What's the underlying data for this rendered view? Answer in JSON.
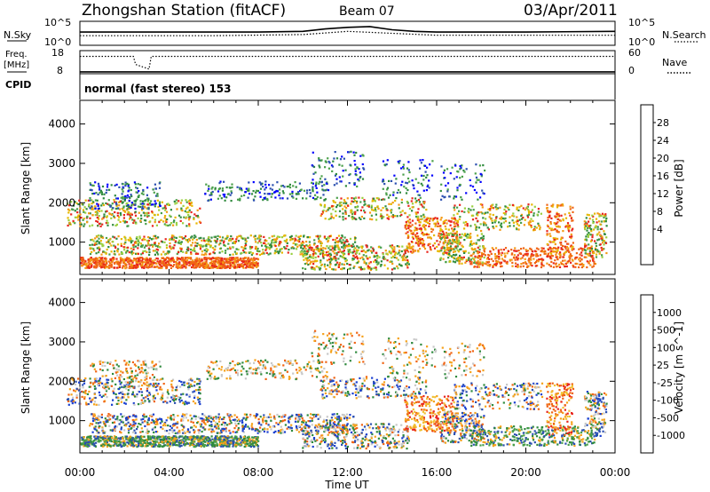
{
  "header": {
    "station": "Zhongshan Station (fitACF)",
    "beam": "Beam 07",
    "date": "03/Apr/2011"
  },
  "noise_panel": {
    "left_label": "N.Sky",
    "right_label": "N.Search",
    "left_ticks": [
      "10^5",
      "10^0"
    ],
    "right_ticks": [
      "10^5",
      "10^0"
    ]
  },
  "freq_panel": {
    "left_label_1": "Freq.",
    "left_label_2": "[MHz]",
    "right_label": "Nave",
    "left_ticks": [
      "18",
      "8"
    ],
    "right_ticks": [
      "60",
      "0"
    ]
  },
  "cpid_panel": {
    "label": "CPID",
    "mode": "normal (fast stereo) 153"
  },
  "chart_data": [
    {
      "type": "line",
      "name": "noise",
      "x_range_hours": [
        0,
        24
      ],
      "series": [
        {
          "style": "solid",
          "points": [
            [
              0,
              0.45
            ],
            [
              2,
              0.45
            ],
            [
              4,
              0.45
            ],
            [
              6,
              0.45
            ],
            [
              8,
              0.45
            ],
            [
              10,
              0.42
            ],
            [
              11,
              0.32
            ],
            [
              12,
              0.25
            ],
            [
              13,
              0.22
            ],
            [
              14,
              0.35
            ],
            [
              15,
              0.42
            ],
            [
              16,
              0.45
            ],
            [
              20,
              0.45
            ],
            [
              24,
              0.42
            ]
          ]
        },
        {
          "style": "dotted",
          "points": [
            [
              0,
              0.6
            ],
            [
              6,
              0.6
            ],
            [
              10,
              0.55
            ],
            [
              12,
              0.42
            ],
            [
              14,
              0.5
            ],
            [
              16,
              0.58
            ],
            [
              24,
              0.58
            ]
          ]
        }
      ]
    },
    {
      "type": "line",
      "name": "frequency / nave",
      "x_range_hours": [
        0,
        24
      ],
      "series": [
        {
          "style": "dotted",
          "points": [
            [
              0,
              0.25
            ],
            [
              2.4,
              0.25
            ],
            [
              2.5,
              0.6
            ],
            [
              3.1,
              0.8
            ],
            [
              3.2,
              0.25
            ],
            [
              24,
              0.25
            ]
          ]
        },
        {
          "style": "solid",
          "points": [
            [
              0,
              0.92
            ],
            [
              24,
              0.92
            ]
          ]
        }
      ]
    },
    {
      "type": "heatmap",
      "name": "power",
      "xlabel": "",
      "ylabel": "Slant Range [km]",
      "x_ticks": [
        "00:00",
        "04:00",
        "08:00",
        "12:00",
        "16:00",
        "20:00",
        "00:00"
      ],
      "x_range_hours": [
        0,
        24
      ],
      "y_ticks": [
        1000,
        2000,
        3000,
        4000
      ],
      "ylim": [
        180,
        4600
      ],
      "colorbar_label": "Power [dB]",
      "colorbar_ticks": [
        "28",
        "24",
        "20",
        "16",
        "12",
        "8",
        "4"
      ],
      "colorbar_colors": [
        "#0000ff",
        "#2b4fb0",
        "#2f8a3e",
        "#4aa04a",
        "#9ad040",
        "#e6b800",
        "#f39a14",
        "#f06414",
        "#e8241c"
      ]
    },
    {
      "type": "heatmap",
      "name": "velocity",
      "xlabel": "Time UT",
      "ylabel": "Slant Range [km]",
      "x_ticks": [
        "00:00",
        "04:00",
        "08:00",
        "12:00",
        "16:00",
        "20:00",
        "00:00"
      ],
      "x_range_hours": [
        0,
        24
      ],
      "y_ticks": [
        1000,
        2000,
        3000,
        4000
      ],
      "ylim": [
        180,
        4600
      ],
      "colorbar_label": "Velocity [m s^-1]",
      "colorbar_ticks": [
        "1000",
        "500",
        "100",
        "25",
        "-25",
        "-100",
        "-500",
        "-1000"
      ],
      "colorbar_colors": [
        "#e8241c",
        "#f06414",
        "#f5a21c",
        "#f0c030",
        "#c8c8c8",
        "#4aa04a",
        "#2f8a3e",
        "#2b4fb0",
        "#1a3fd0"
      ]
    }
  ]
}
